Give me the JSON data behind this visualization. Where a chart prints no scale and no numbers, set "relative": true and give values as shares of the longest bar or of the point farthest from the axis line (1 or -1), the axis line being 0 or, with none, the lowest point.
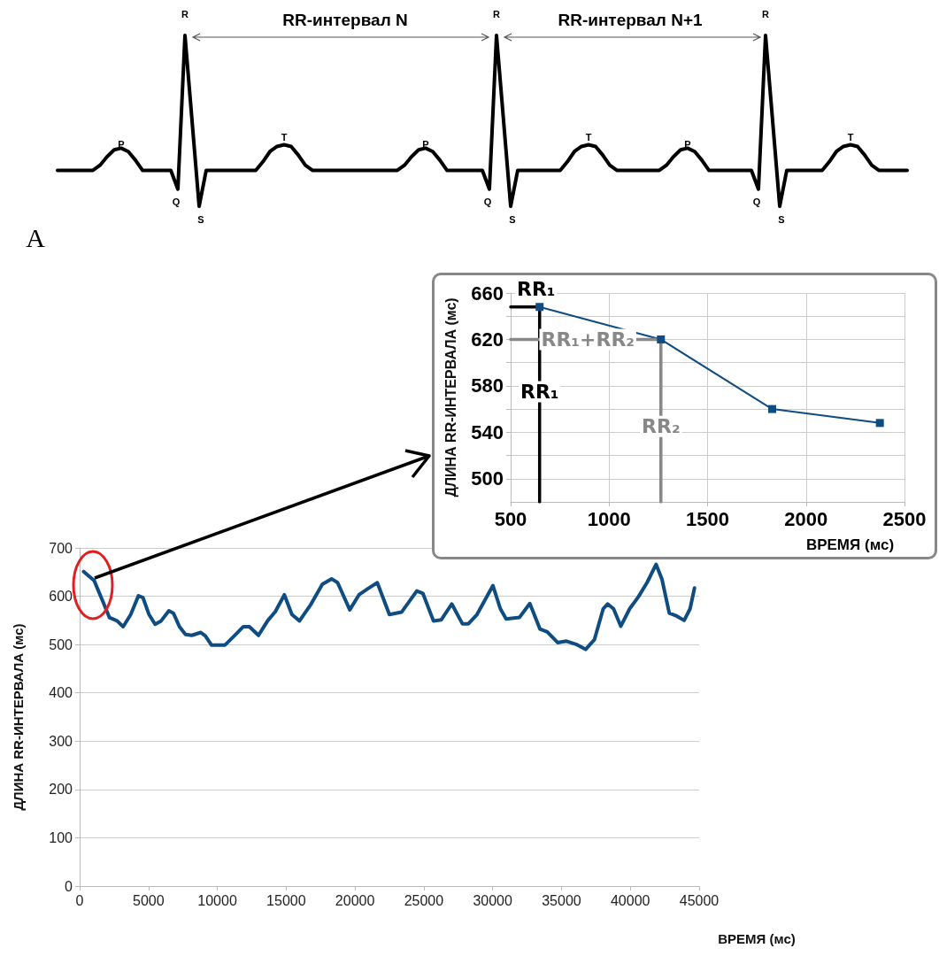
{
  "chart_data": [
    {
      "type": "line",
      "relative": true,
      "color": "#000000",
      "marker": "none",
      "categories": [
        null,
        null,
        null,
        null,
        null,
        null,
        null,
        null,
        null,
        null,
        null,
        null,
        null,
        null,
        null,
        null,
        null,
        null,
        null,
        null,
        null,
        null,
        null,
        null,
        null,
        null,
        null,
        null,
        null,
        null,
        null,
        null,
        null,
        null,
        null,
        null,
        null,
        null,
        null,
        null,
        null,
        null,
        null,
        null,
        null,
        null,
        null,
        null,
        null,
        null,
        null,
        null,
        null,
        null,
        null,
        null,
        null,
        null,
        null,
        null,
        null,
        null,
        null,
        null,
        null,
        null,
        null,
        null,
        null,
        null,
        null,
        null,
        null,
        null,
        null,
        null,
        null,
        null,
        null,
        null,
        null,
        null,
        null,
        null,
        null,
        null,
        null,
        null,
        null,
        null,
        null,
        null,
        null,
        null,
        null,
        null,
        null,
        null,
        null,
        null,
        null,
        null,
        null,
        null,
        null,
        null,
        null,
        null,
        null,
        null,
        null,
        null,
        null,
        null,
        null,
        null,
        null,
        null,
        null,
        null,
        null
      ],
      "values": [
        0.21,
        0.21,
        0.21,
        0.21,
        0.21,
        0.21,
        0.24,
        0.29,
        0.33,
        0.34,
        0.32,
        0.27,
        0.21,
        0.21,
        0.21,
        0.21,
        0.21,
        0.1,
        1,
        0.5,
        0,
        0.21,
        0.21,
        0.21,
        0.21,
        0.21,
        0.21,
        0.21,
        0.21,
        0.26,
        0.32,
        0.35,
        0.36,
        0.35,
        0.3,
        0.24,
        0.21,
        0.21,
        0.21,
        0.21,
        0.21,
        0.21,
        0.21,
        0.21,
        0.21,
        0.21,
        0.21,
        0.21,
        0.21,
        0.24,
        0.29,
        0.33,
        0.34,
        0.32,
        0.27,
        0.21,
        0.21,
        0.21,
        0.21,
        0.21,
        0.21,
        0.1,
        1,
        0.5,
        0,
        0.21,
        0.21,
        0.21,
        0.21,
        0.21,
        0.21,
        0.21,
        0.26,
        0.32,
        0.35,
        0.36,
        0.35,
        0.3,
        0.24,
        0.21,
        0.21,
        0.21,
        0.21,
        0.21,
        0.21,
        0.21,
        0.24,
        0.29,
        0.33,
        0.34,
        0.32,
        0.27,
        0.21,
        0.21,
        0.21,
        0.21,
        0.21,
        0.21,
        0.21,
        0.1,
        1,
        0.5,
        0,
        0.21,
        0.21,
        0.21,
        0.21,
        0.21,
        0.21,
        0.26,
        0.32,
        0.35,
        0.36,
        0.35,
        0.3,
        0.24,
        0.21,
        0.21,
        0.21,
        0.21,
        0.21
      ],
      "annotations": [
        "A",
        "RR-интервал N",
        "RR-интервал N+1",
        "R",
        "R",
        "R",
        "P",
        "P",
        "P",
        "Q",
        "Q",
        "Q",
        "S",
        "S",
        "S",
        "T",
        "T",
        "T"
      ]
    },
    {
      "type": "line",
      "xlabel": "ВРЕМЯ (мс)",
      "ylabel": "ДЛИНА RR-ИНТЕРВАЛА (мс)",
      "color": "#0f4c81",
      "marker": "none",
      "grid": "y",
      "x": [
        290,
        1060,
        1720,
        2160,
        2720,
        3160,
        3710,
        4270,
        4600,
        5040,
        5480,
        5920,
        6480,
        6810,
        7250,
        7690,
        8140,
        8800,
        9130,
        9570,
        10560,
        11230,
        11890,
        12330,
        12990,
        13650,
        14210,
        14870,
        15420,
        15970,
        16750,
        17630,
        18300,
        18740,
        19620,
        20290,
        20950,
        21620,
        22500,
        23380,
        24490,
        24930,
        25700,
        26260,
        27030,
        27800,
        28240,
        28860,
        30020,
        30560,
        30980,
        31940,
        32700,
        33440,
        33970,
        34720,
        35360,
        36110,
        36750,
        37390,
        38030,
        38350,
        38780,
        39310,
        39950,
        40590,
        41230,
        41870,
        42300,
        42830,
        43370,
        43910,
        44340,
        44660
      ],
      "values": [
        651,
        632,
        587,
        556,
        549,
        537,
        562,
        601,
        597,
        562,
        542,
        549,
        570,
        565,
        537,
        521,
        519,
        525,
        518,
        499,
        499,
        518,
        537,
        537,
        519,
        549,
        568,
        603,
        562,
        549,
        581,
        625,
        636,
        628,
        572,
        603,
        616,
        628,
        562,
        567,
        611,
        606,
        549,
        551,
        584,
        543,
        543,
        562,
        622,
        574,
        553,
        556,
        585,
        532,
        526,
        504,
        507,
        500,
        490,
        510,
        574,
        584,
        574,
        538,
        574,
        599,
        629,
        666,
        635,
        565,
        559,
        550,
        574,
        617
      ],
      "xlim": [
        0,
        45000
      ],
      "xticks": [
        0,
        5000,
        10000,
        15000,
        20000,
        25000,
        30000,
        35000,
        40000,
        45000
      ],
      "ylim": [
        0,
        700
      ],
      "yticks": [
        0,
        100,
        200,
        300,
        400,
        500,
        600,
        700
      ]
    },
    {
      "type": "line",
      "xlabel": "ВРЕМЯ (мс)",
      "ylabel": "ДЛИНА RR-ИНТЕРВАЛА (мс)",
      "marker": "square",
      "grid": true,
      "series": [
        {
          "color": "#0f4c81",
          "x": [
            647,
            1263,
            1828,
            2375
          ],
          "values": [
            648,
            620,
            560,
            548
          ]
        },
        {
          "color": "#000000",
          "marker": "none",
          "x": [
            500,
            647,
            647
          ],
          "values": [
            648,
            648,
            480
          ]
        },
        {
          "color": "#888888",
          "marker": "none",
          "x": [
            500,
            1263,
            1263
          ],
          "values": [
            620,
            620,
            480
          ]
        }
      ],
      "annotations": [
        {
          "text": "RR₁",
          "x": 647,
          "y": 648
        },
        {
          "text": "RR₁",
          "x": 647,
          "y": 575
        },
        {
          "text": "RR₁+RR₂",
          "x": 892,
          "y": 620
        },
        {
          "text": "RR₂",
          "x": 1263,
          "y": 545
        }
      ],
      "xlim": [
        500,
        2500
      ],
      "xticks": [
        500,
        1000,
        1500,
        2000,
        2500
      ],
      "ylim": [
        480,
        660
      ],
      "yticks": [
        500,
        {
          "value": 520,
          "label": null
        },
        540,
        {
          "value": 560,
          "label": null
        },
        580,
        {
          "value": 600,
          "label": null
        },
        620,
        {
          "value": 640,
          "label": null
        },
        660
      ]
    }
  ]
}
